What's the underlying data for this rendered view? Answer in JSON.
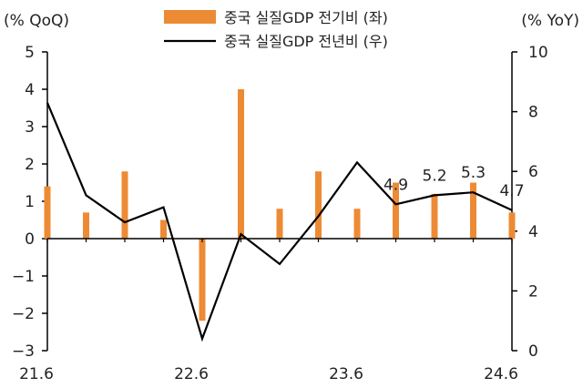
{
  "chart_data": {
    "type": "bar+line",
    "left_axis_label": "(% QoQ)",
    "right_axis_label": "(% YoY)",
    "left_ylim": [
      -3,
      5
    ],
    "left_ticks": [
      "5",
      "4",
      "3",
      "2",
      "1",
      "0",
      "-1",
      "-2",
      "-3"
    ],
    "right_ylim": [
      0,
      10
    ],
    "right_ticks": [
      "10",
      "8",
      "6",
      "4",
      "2",
      "0"
    ],
    "x_tick_labels": [
      "21.6",
      "22.6",
      "23.6",
      "24.6"
    ],
    "categories": [
      "21.6",
      "21.9",
      "21.12",
      "22.3",
      "22.6",
      "22.9",
      "22.12",
      "23.3",
      "23.6",
      "23.9",
      "23.12",
      "24.3",
      "24.6"
    ],
    "series": [
      {
        "name": "중국 실질GDP 전기비 (좌)",
        "type": "bar",
        "axis": "left",
        "color": "#ED8B35",
        "values": [
          1.4,
          0.7,
          1.8,
          0.5,
          -2.2,
          4.0,
          0.8,
          1.8,
          0.8,
          1.5,
          1.2,
          1.5,
          0.7
        ]
      },
      {
        "name": "중국 실질GDP 전년비 (우)",
        "type": "line",
        "axis": "right",
        "color": "#000000",
        "values": [
          8.3,
          5.2,
          4.3,
          4.8,
          0.4,
          3.9,
          2.9,
          4.5,
          6.3,
          4.9,
          5.2,
          5.3,
          4.7
        ]
      }
    ],
    "annotations": [
      {
        "index": 9,
        "text": "4.9"
      },
      {
        "index": 10,
        "text": "5.2"
      },
      {
        "index": 11,
        "text": "5.3"
      },
      {
        "index": 12,
        "text": "4.7"
      }
    ],
    "legend_position": "top-center",
    "grid": false
  }
}
